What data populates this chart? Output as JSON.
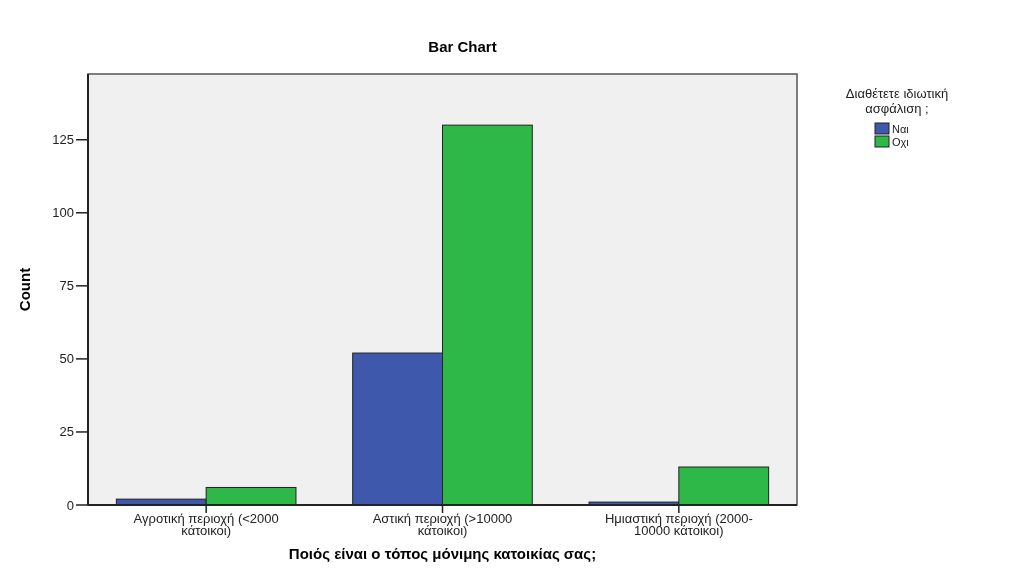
{
  "chart_data": {
    "type": "bar",
    "title": "Bar Chart",
    "xlabel": "Ποιός είναι ο τόπος μόνιμης κατοικίας σας;",
    "ylabel": "Count",
    "legend_title": "Διαθέτετε ιδιωτική ασφάλιση ;",
    "categories": [
      "Αγροτική περιοχή (<2000 κάτοικοι)",
      "Αστική περιοχή (>10000 κάτοικοι)",
      "Ημιαστική περιοχή (2000-10000 κάτοικοι)"
    ],
    "series": [
      {
        "name": "Ναι",
        "color": "#3e58ac",
        "values": [
          2,
          52,
          1
        ]
      },
      {
        "name": "Οχι",
        "color": "#2eb848",
        "values": [
          6,
          130,
          13
        ]
      }
    ],
    "ylim": [
      0,
      147.5
    ],
    "yticks": [
      0,
      25,
      50,
      75,
      100,
      125
    ],
    "grid": false,
    "legend": "top right"
  }
}
